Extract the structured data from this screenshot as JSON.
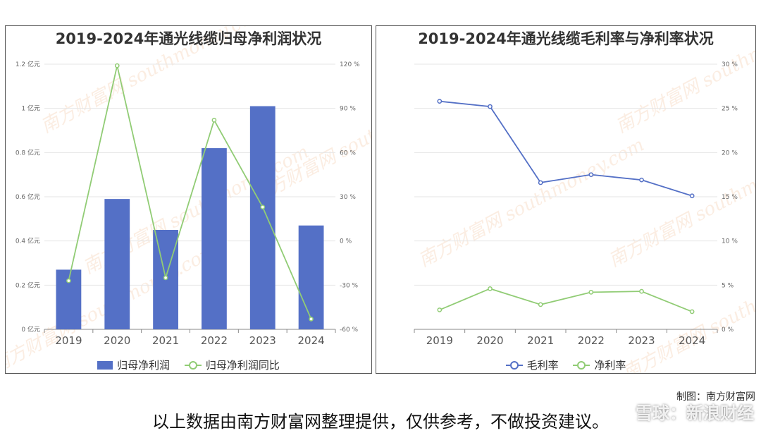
{
  "charts": {
    "left": {
      "title": "2019-2024年通光线缆归母净利润状况",
      "watermark": "南方财富网 southmoney.com"
    },
    "right": {
      "title": "2019-2024年通光线缆毛利率与净利率状况",
      "watermark": "南方财富网 southmoney.com"
    }
  },
  "credit": "制图：南方财富网",
  "footer_note": "以上数据由南方财富网整理提供，仅供参考，不做投资建议。",
  "brand": "雪球：新浪财经",
  "colors": {
    "bar": "#5470c6",
    "line_green": "#91cc75",
    "line_blue": "#5470c6"
  },
  "chart_data": [
    {
      "type": "bar",
      "title": "2019-2024年通光线缆归母净利润状况",
      "categories": [
        "2019",
        "2020",
        "2021",
        "2022",
        "2023",
        "2024"
      ],
      "series": [
        {
          "name": "归母净利润",
          "type": "bar",
          "axis": "left",
          "values": [
            0.27,
            0.59,
            0.45,
            0.82,
            1.01,
            0.47
          ]
        },
        {
          "name": "归母净利润同比",
          "type": "line",
          "axis": "right",
          "values": [
            -27,
            119,
            -25,
            82,
            23,
            -53
          ]
        }
      ],
      "y_left": {
        "ticks": [
          "0 亿元",
          "0.2 亿元",
          "0.4 亿元",
          "0.6 亿元",
          "0.8 亿元",
          "1 亿元",
          "1.2 亿元"
        ],
        "ylim": [
          0,
          1.2
        ]
      },
      "y_right": {
        "ticks": [
          "-60 %",
          "-30 %",
          "0 %",
          "30 %",
          "60 %",
          "90 %",
          "120 %"
        ],
        "ylim": [
          -60,
          120
        ]
      },
      "legend_position": "bottom",
      "grid": true
    },
    {
      "type": "line",
      "title": "2019-2024年通光线缆毛利率与净利率状况",
      "categories": [
        "2019",
        "2020",
        "2021",
        "2022",
        "2023",
        "2024"
      ],
      "series": [
        {
          "name": "毛利率",
          "values": [
            25.8,
            25.2,
            16.6,
            17.5,
            16.9,
            15.1
          ]
        },
        {
          "name": "净利率",
          "values": [
            2.2,
            4.6,
            2.8,
            4.2,
            4.3,
            2.0
          ]
        }
      ],
      "y_right": {
        "ticks": [
          "0 %",
          "5 %",
          "10 %",
          "15 %",
          "20 %",
          "25 %",
          "30 %"
        ],
        "ylim": [
          0,
          30
        ]
      },
      "legend_position": "bottom",
      "grid": true
    }
  ]
}
